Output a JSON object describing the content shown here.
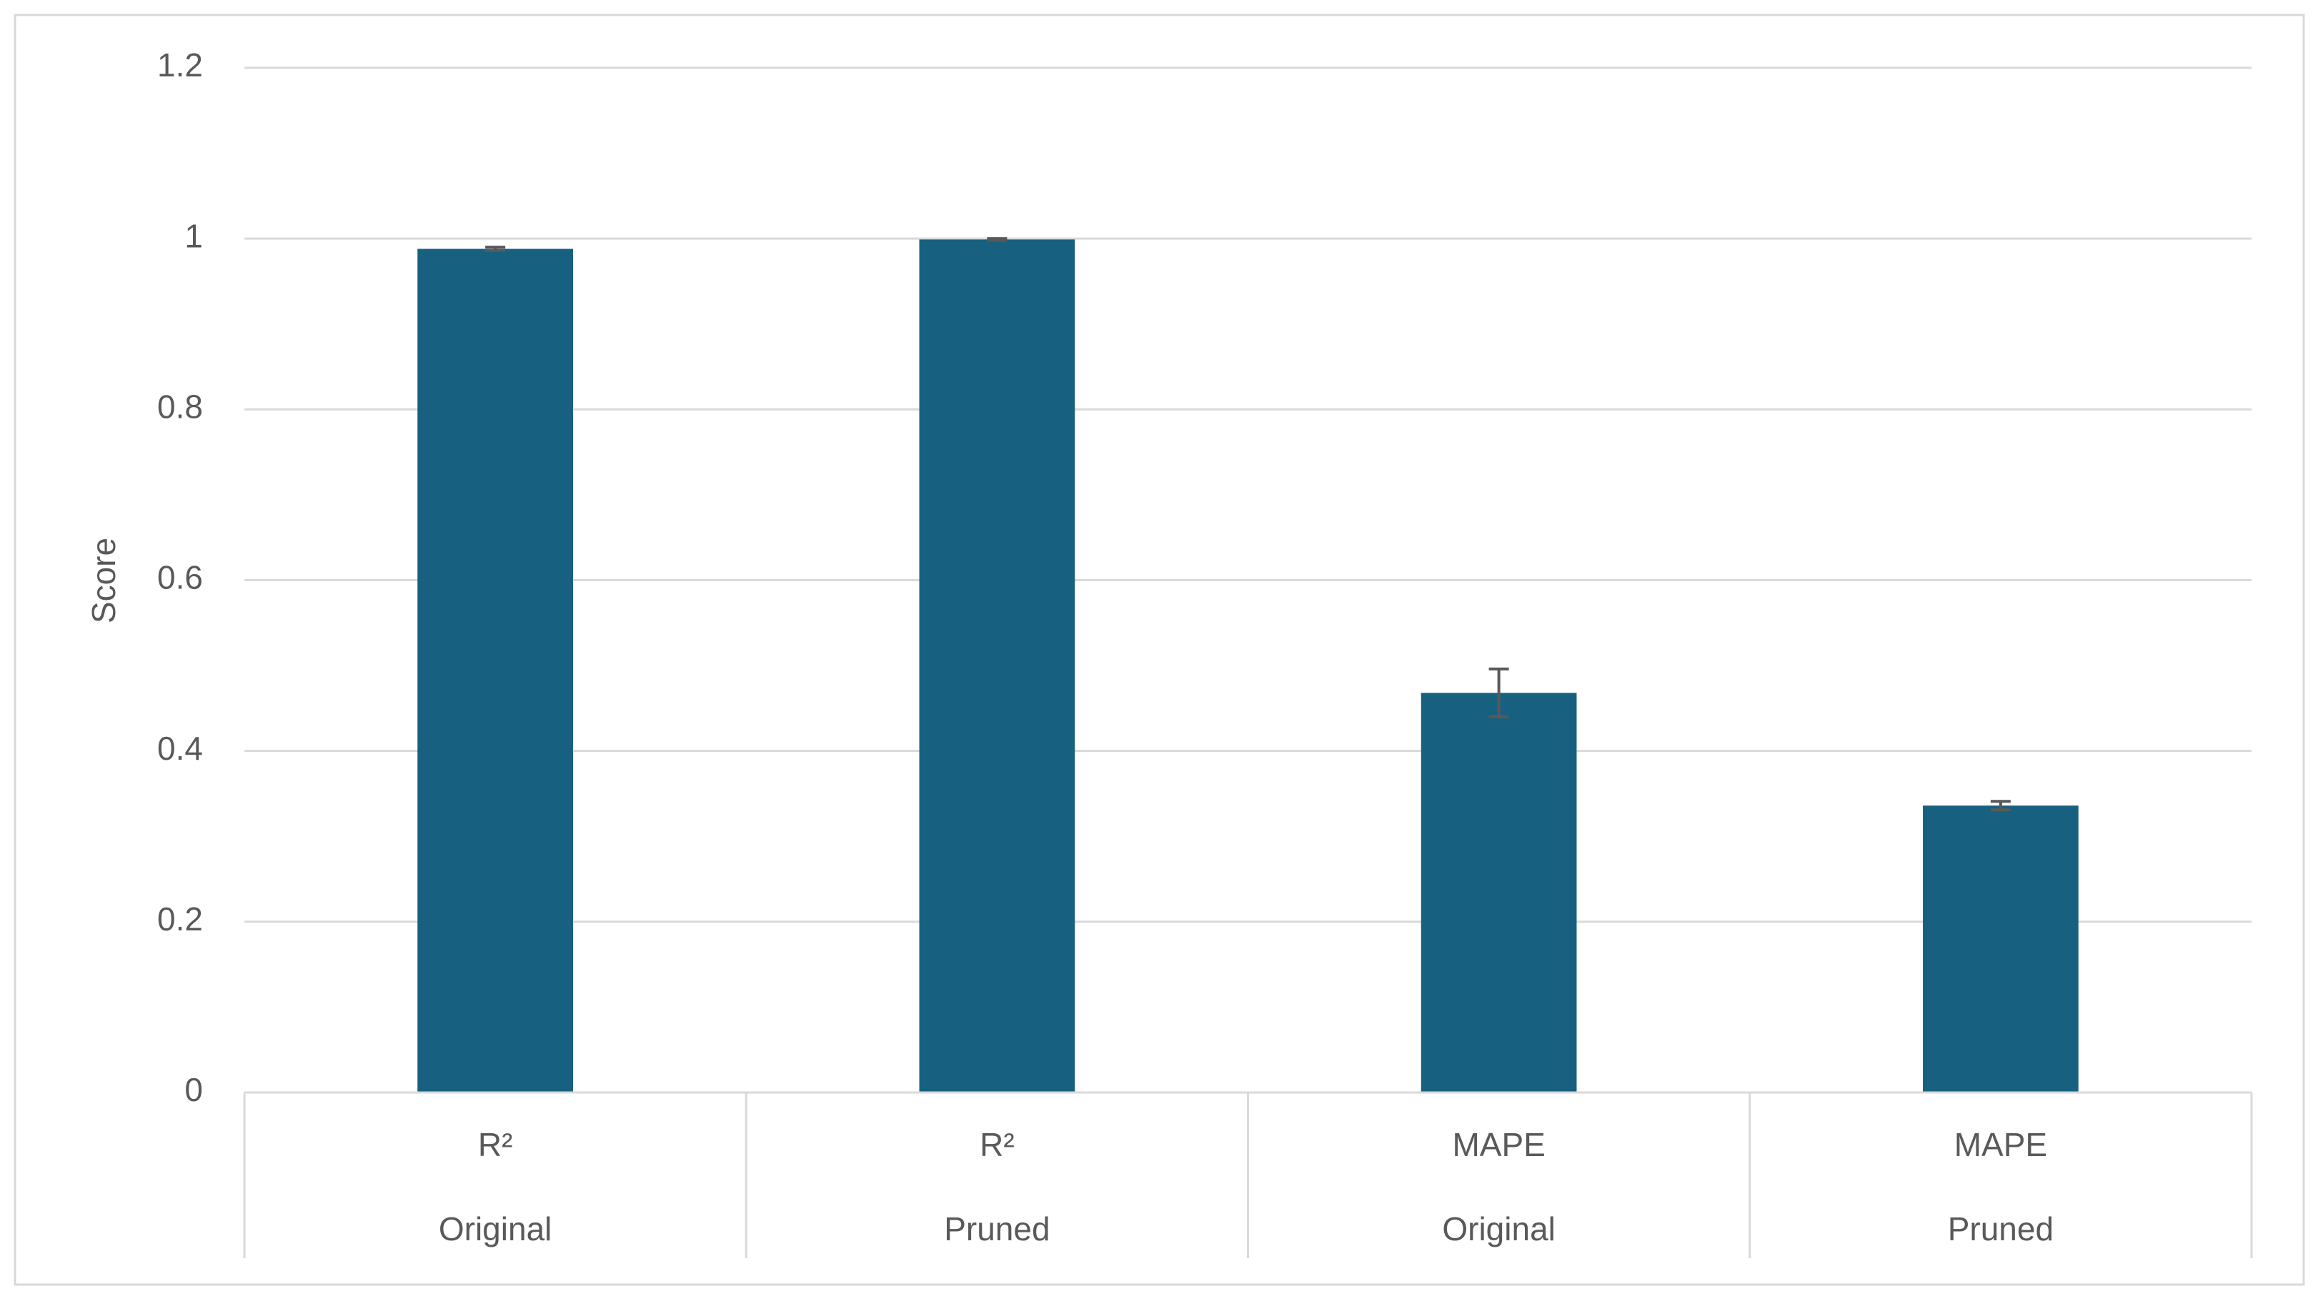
{
  "chart_data": {
    "type": "bar",
    "y_label": "Score",
    "categories": [
      "R²",
      "R²",
      "MAPE",
      "MAPE"
    ],
    "subcategories": [
      "Original",
      "Pruned",
      "Original",
      "Pruned"
    ],
    "values": [
      0.988,
      0.999,
      0.468,
      0.336
    ],
    "errors": [
      0.002,
      0.001,
      0.028,
      0.005
    ],
    "color": "#17607f",
    "ylim": [
      0,
      1.2
    ],
    "yticks": [
      0,
      0.2,
      0.4,
      0.6,
      0.8,
      1,
      1.2
    ],
    "grid": true
  }
}
